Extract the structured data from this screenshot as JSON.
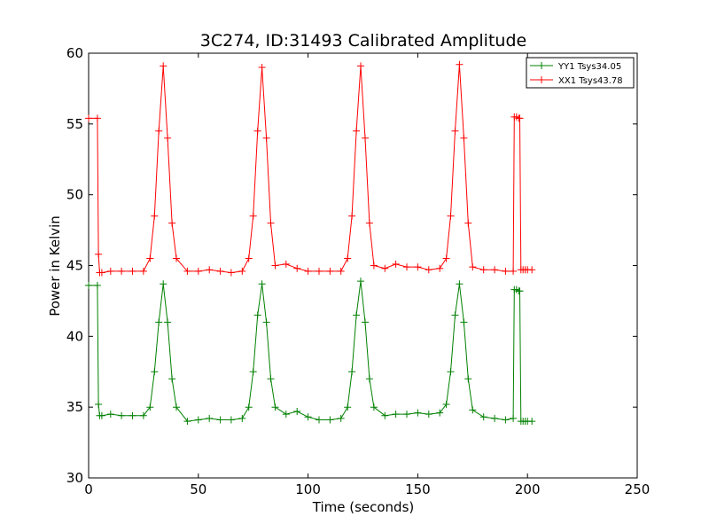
{
  "chart_data": {
    "type": "line",
    "title": "3C274, ID:31493 Calibrated Amplitude",
    "xlabel": "Time (seconds)",
    "ylabel": "Power in Kelvin",
    "xlim": [
      0,
      250
    ],
    "ylim": [
      30,
      60
    ],
    "xticks": [
      0,
      50,
      100,
      150,
      200,
      250
    ],
    "yticks": [
      30,
      35,
      40,
      45,
      50,
      55,
      60
    ],
    "grid": false,
    "legend_position": "top-right",
    "marker": "+",
    "series": [
      {
        "name": "YY1 Tsys34.05",
        "color": "#008000",
        "x": [
          0,
          4,
          4.5,
          5,
          6,
          10,
          15,
          20,
          25,
          28,
          30,
          32,
          34,
          36,
          38,
          40,
          45,
          50,
          55,
          60,
          65,
          70,
          73,
          75,
          77,
          79,
          81,
          83,
          85,
          90,
          95,
          100,
          105,
          110,
          115,
          118,
          120,
          122,
          124,
          126,
          128,
          130,
          135,
          140,
          145,
          150,
          155,
          160,
          163,
          165,
          167,
          169,
          171,
          173,
          175,
          180,
          185,
          190,
          193.5,
          194,
          195,
          196,
          196.5,
          197,
          198,
          199,
          200,
          202
        ],
        "y": [
          43.6,
          43.6,
          35.2,
          34.4,
          34.4,
          34.5,
          34.4,
          34.4,
          34.4,
          35.0,
          37.5,
          41.0,
          43.7,
          41.0,
          37.0,
          35.0,
          34.0,
          34.1,
          34.2,
          34.1,
          34.1,
          34.2,
          35.0,
          37.5,
          41.5,
          43.7,
          41.0,
          37.0,
          35.0,
          34.5,
          34.7,
          34.3,
          34.1,
          34.1,
          34.2,
          35.0,
          37.5,
          41.5,
          43.9,
          41.0,
          37.0,
          35.0,
          34.4,
          34.5,
          34.5,
          34.6,
          34.5,
          34.6,
          35.2,
          37.5,
          41.5,
          43.7,
          41.0,
          37.0,
          34.8,
          34.3,
          34.2,
          34.1,
          34.2,
          43.3,
          43.3,
          43.2,
          43.2,
          34.0,
          34.0,
          34.0,
          34.0,
          34.0
        ]
      },
      {
        "name": "XX1 Tsys43.78",
        "color": "#ff0000",
        "x": [
          0,
          4,
          4.5,
          5,
          6,
          10,
          15,
          20,
          25,
          28,
          30,
          32,
          34,
          36,
          38,
          40,
          45,
          50,
          55,
          60,
          65,
          70,
          73,
          75,
          77,
          79,
          81,
          83,
          85,
          90,
          95,
          100,
          105,
          110,
          115,
          118,
          120,
          122,
          124,
          126,
          128,
          130,
          135,
          140,
          145,
          150,
          155,
          160,
          163,
          165,
          167,
          169,
          171,
          173,
          175,
          180,
          185,
          190,
          193.5,
          194,
          195,
          196,
          196.5,
          197,
          198,
          199,
          200,
          202
        ],
        "y": [
          55.4,
          55.4,
          45.8,
          44.5,
          44.5,
          44.6,
          44.6,
          44.6,
          44.6,
          45.5,
          48.5,
          54.5,
          59.1,
          54.0,
          48.0,
          45.5,
          44.6,
          44.6,
          44.7,
          44.6,
          44.5,
          44.6,
          45.5,
          48.5,
          54.5,
          59.0,
          54.0,
          48.0,
          45.0,
          45.1,
          44.8,
          44.6,
          44.6,
          44.6,
          44.6,
          45.5,
          48.5,
          54.5,
          59.1,
          54.0,
          48.0,
          45.0,
          44.8,
          45.1,
          44.9,
          44.9,
          44.7,
          44.8,
          45.5,
          48.5,
          54.5,
          59.2,
          54.0,
          48.0,
          44.9,
          44.7,
          44.7,
          44.6,
          44.6,
          55.5,
          55.5,
          55.4,
          55.4,
          44.7,
          44.7,
          44.7,
          44.7,
          44.7
        ]
      }
    ]
  }
}
